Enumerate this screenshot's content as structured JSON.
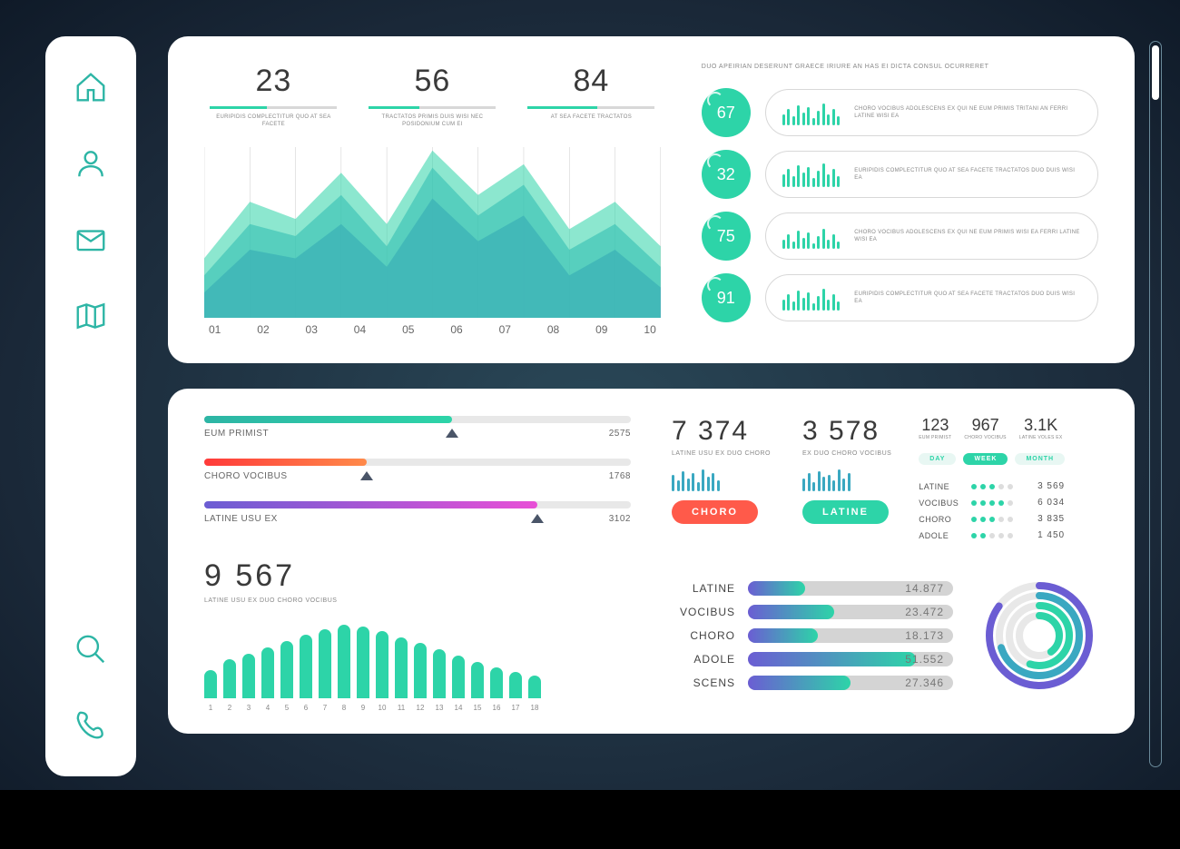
{
  "colors": {
    "teal": "#2dd4a8",
    "teal_dark": "#1aae8e",
    "purple": "#6b5dd3",
    "red": "#ff5a4a",
    "magenta": "#c94fd6",
    "grey_track": "#d4d4d4",
    "icon_stroke": "#2db5a5"
  },
  "sidebar": {
    "items": [
      "home",
      "user",
      "mail",
      "map",
      "search",
      "phone"
    ]
  },
  "top_panel": {
    "kpis": [
      {
        "value": "23",
        "fill_pct": 45,
        "label": "EURIPIDIS COMPLECTITUR QUO AT SEA FACETE"
      },
      {
        "value": "56",
        "fill_pct": 40,
        "label": "TRACTATOS PRIMIS DUIS WISI NEC POSIDONIUM CUM EI"
      },
      {
        "value": "84",
        "fill_pct": 55,
        "label": "AT SEA FACETE TRACTATOS"
      }
    ],
    "area_chart": {
      "x_labels": [
        "01",
        "02",
        "03",
        "04",
        "05",
        "06",
        "07",
        "08",
        "09",
        "10"
      ],
      "series": [
        {
          "color": "#6b5dd3",
          "opacity": 0.75,
          "points": [
            15,
            40,
            35,
            55,
            30,
            70,
            45,
            60,
            25,
            40,
            18
          ]
        },
        {
          "color": "#3aa8c1",
          "opacity": 0.6,
          "points": [
            25,
            55,
            48,
            72,
            42,
            88,
            60,
            78,
            40,
            55,
            30
          ]
        },
        {
          "color": "#2dd4a8",
          "opacity": 0.55,
          "points": [
            35,
            68,
            58,
            85,
            55,
            98,
            72,
            90,
            52,
            68,
            42
          ]
        }
      ],
      "gridlines": 10
    },
    "right_title": "DUO APEIRIAN DESERUNT GRAECE IRIURE AN HAS EI DICTA CONSUL OCURRERET",
    "stat_rows": [
      {
        "value": "67",
        "badge_color": "#2dd4a8",
        "bars": [
          12,
          18,
          10,
          22,
          14,
          20,
          8,
          16,
          24,
          12,
          18,
          10
        ],
        "bar_color": "#2dd4a8",
        "text": "CHORO VOCIBUS ADOLESCENS EX QUI NE EUM PRIMIS TRITANI AN FERRI LATINE WISI EA"
      },
      {
        "value": "32",
        "badge_color": "#2dd4a8",
        "bars": [
          14,
          20,
          12,
          24,
          16,
          22,
          10,
          18,
          26,
          14,
          20,
          12
        ],
        "bar_color": "#2dd4a8",
        "text": "EURIPIDIS COMPLECTITUR QUO AT SEA FACETE TRACTATOS DUO DUIS WISI EA"
      },
      {
        "value": "75",
        "badge_color": "#2dd4a8",
        "bars": [
          10,
          16,
          8,
          20,
          12,
          18,
          6,
          14,
          22,
          10,
          16,
          8
        ],
        "bar_color": "#2dd4a8",
        "text": "CHORO VOCIBUS ADOLESCENS EX QUI NE EUM PRIMIS WISI EA FERRI LATINE WISI EA"
      },
      {
        "value": "91",
        "badge_color": "#2dd4a8",
        "bars": [
          12,
          18,
          10,
          22,
          14,
          20,
          8,
          16,
          24,
          12,
          18,
          10
        ],
        "bar_color": "#2dd4a8",
        "text": "EURIPIDIS COMPLECTITUR QUO AT SEA FACETE TRACTATOS DUO DUIS WISI EA"
      }
    ]
  },
  "bottom_panel": {
    "sliders": [
      {
        "label": "EUM PRIMIST",
        "value": "2575",
        "fill_pct": 58,
        "handle_pct": 58,
        "gradient": [
          "#2db5a5",
          "#2dd4a8"
        ]
      },
      {
        "label": "CHORO VOCIBUS",
        "value": "1768",
        "fill_pct": 38,
        "handle_pct": 38,
        "gradient": [
          "#ff3a3a",
          "#ff8a4a"
        ]
      },
      {
        "label": "LATINE USU EX",
        "value": "3102",
        "fill_pct": 78,
        "handle_pct": 78,
        "gradient": [
          "#6b5dd3",
          "#e84fd6"
        ]
      }
    ],
    "metrics": [
      {
        "value": "7 374",
        "label": "LATINE USU EX DUO CHORO",
        "bars": [
          18,
          12,
          22,
          14,
          20,
          10,
          24,
          16,
          20,
          12
        ],
        "bar_color": "#3aa8c1",
        "btn": {
          "label": "CHORO",
          "color": "#ff5a4a"
        }
      },
      {
        "value": "3 578",
        "label": "EX DUO CHORO VOCIBUS",
        "bars": [
          14,
          20,
          10,
          22,
          16,
          18,
          12,
          24,
          14,
          20
        ],
        "bar_color": "#3aa8c1",
        "btn": {
          "label": "LATINE",
          "color": "#2dd4a8"
        }
      }
    ],
    "tabs": {
      "items": [
        {
          "value": "123",
          "label": "EUM PRIMIST"
        },
        {
          "value": "967",
          "label": "CHORO VOCIBUS"
        },
        {
          "value": "3.1K",
          "label": "LATINE VOLES EX"
        }
      ],
      "pills": [
        {
          "label": "DAY",
          "active": false,
          "color": "#2dd4a8"
        },
        {
          "label": "WEEK",
          "active": true,
          "color": "#2dd4a8"
        },
        {
          "label": "MONTH",
          "active": false,
          "color": "#2dd4a8"
        }
      ],
      "dots_rows": [
        {
          "label": "LATINE",
          "filled": 3,
          "value": "3 569"
        },
        {
          "label": "VOCIBUS",
          "filled": 4,
          "value": "6 034"
        },
        {
          "label": "CHORO",
          "filled": 3,
          "value": "3 835"
        },
        {
          "label": "ADOLE",
          "filled": 2,
          "value": "1 450"
        }
      ],
      "dot_color": "#2dd4a8"
    },
    "big": {
      "value": "9 567",
      "label": "LATINE USU EX DUO CHORO VOCIBUS",
      "bars": [
        35,
        48,
        55,
        62,
        70,
        78,
        85,
        90,
        88,
        82,
        75,
        68,
        60,
        52,
        45,
        38,
        32,
        28
      ],
      "bar_color": "#2dd4a8",
      "x_count": 18
    },
    "hbars": [
      {
        "label": "LATINE",
        "pct": 28,
        "value": "14.877",
        "gradient": [
          "#6b5dd3",
          "#2dd4a8"
        ]
      },
      {
        "label": "VOCIBUS",
        "pct": 42,
        "value": "23.472",
        "gradient": [
          "#6b5dd3",
          "#2dd4a8"
        ]
      },
      {
        "label": "CHORO",
        "pct": 34,
        "value": "18.173",
        "gradient": [
          "#6b5dd3",
          "#2dd4a8"
        ]
      },
      {
        "label": "ADOLE",
        "pct": 82,
        "value": "51.552",
        "gradient": [
          "#6b5dd3",
          "#2dd4a8"
        ]
      },
      {
        "label": "SCENS",
        "pct": 50,
        "value": "27.346",
        "gradient": [
          "#6b5dd3",
          "#2dd4a8"
        ]
      }
    ],
    "donut": {
      "rings": [
        {
          "radius": 55,
          "pct": 85,
          "color": "#6b5dd3"
        },
        {
          "radius": 44,
          "pct": 70,
          "color": "#3aa8c1"
        },
        {
          "radius": 33,
          "pct": 55,
          "color": "#2dd4a8"
        },
        {
          "radius": 22,
          "pct": 40,
          "color": "#2dd4a8"
        }
      ],
      "stroke_width": 8
    }
  }
}
